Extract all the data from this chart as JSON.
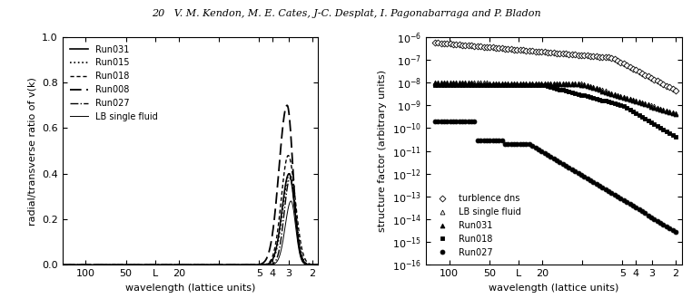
{
  "title": "20   V. M. Kendon, M. E. Cates, J-C. Desplat, I. Pagonabarraga and P. Bladon",
  "left_ylabel": "radial/transverse ratio of v(k)",
  "right_ylabel": "structure factor (arbitrary units)",
  "xlabel": "wavelength (lattice units)",
  "background": "#ffffff",
  "left_legend": [
    "Run031",
    "Run015",
    "Run018",
    "Run008",
    "Run027",
    "LB single fluid"
  ],
  "right_legend": [
    "turblence dns",
    "LB single fluid",
    "Run031",
    "Run018",
    "Run027"
  ],
  "left_ylim": [
    0.0,
    1.0
  ],
  "left_yticks": [
    0.0,
    0.2,
    0.4,
    0.6,
    0.8,
    1.0
  ],
  "xtick_positions": [
    100,
    50,
    30,
    20,
    10,
    5,
    4,
    3,
    2
  ],
  "xtick_labels": [
    "100",
    "50",
    "L",
    "20",
    "",
    "5",
    "4",
    "3",
    "2"
  ],
  "xlim": [
    150,
    1.8
  ]
}
